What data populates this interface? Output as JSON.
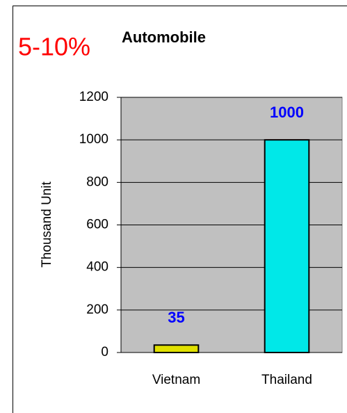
{
  "chart_data": {
    "type": "bar",
    "title": "Automobile",
    "annotation": "5-10%",
    "annotation_color": "#ff0000",
    "y_label": "Thousand Unit",
    "categories": [
      "Vietnam",
      "Thailand"
    ],
    "values": [
      35,
      1000
    ],
    "colors": [
      "#e0e000",
      "#00e8e8"
    ],
    "label_color": "#0000ff",
    "plot_color": "#c0c0c0",
    "ylim": [
      0,
      1200
    ],
    "yticks": [
      0,
      200,
      400,
      600,
      800,
      1000,
      1200
    ],
    "grid": true
  }
}
